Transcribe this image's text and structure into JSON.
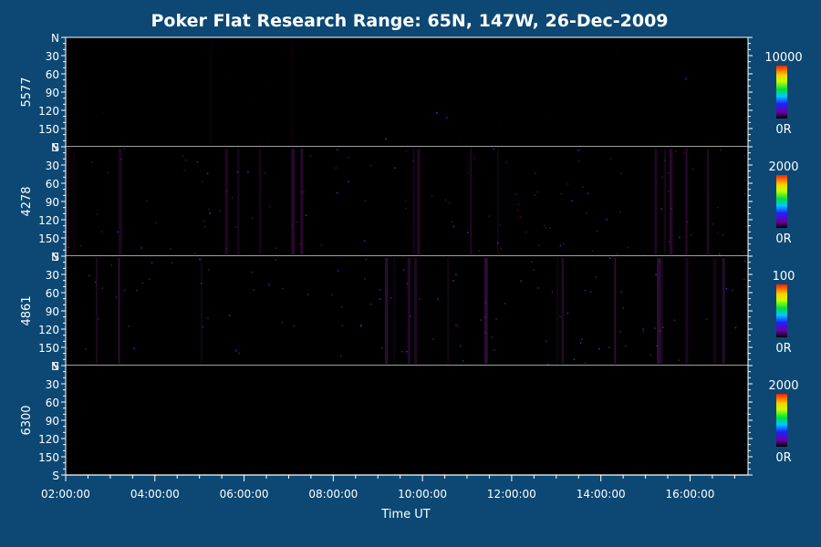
{
  "chart_data": {
    "type": "heatmap",
    "title": "Poker Flat Research Range: 65N, 147W, 26-Dec-2009",
    "xlabel": "Time UT",
    "x_ticks": [
      "02:00:00",
      "04:00:00",
      "06:00:00",
      "08:00:00",
      "10:00:00",
      "12:00:00",
      "14:00:00",
      "16:00:00"
    ],
    "x_range_hours": [
      2.0,
      17.3
    ],
    "y_ticks": [
      {
        "label": "N",
        "value": 0
      },
      {
        "label": "30",
        "value": 30
      },
      {
        "label": "60",
        "value": 60
      },
      {
        "label": "90",
        "value": 90
      },
      {
        "label": "120",
        "value": 120
      },
      {
        "label": "150",
        "value": 150
      },
      {
        "label": "S",
        "value": 180
      }
    ],
    "y_range": [
      0,
      180
    ],
    "panels": [
      {
        "name": "5577",
        "scale_max": "10000",
        "scale_min": "0R",
        "colorscale": "rainbow",
        "intensity": 0.05,
        "tint": "#1a0012"
      },
      {
        "name": "4278",
        "scale_max": "2000",
        "scale_min": "0R",
        "colorscale": "rainbow",
        "intensity": 0.35,
        "tint": "#5a1060"
      },
      {
        "name": "4861",
        "scale_max": "100",
        "scale_min": "0R",
        "colorscale": "rainbow",
        "intensity": 0.3,
        "tint": "#6a2080"
      },
      {
        "name": "6300",
        "scale_max": "2000",
        "scale_min": "0R",
        "colorscale": "rainbow",
        "intensity": 0.0,
        "tint": "#000000"
      }
    ]
  }
}
